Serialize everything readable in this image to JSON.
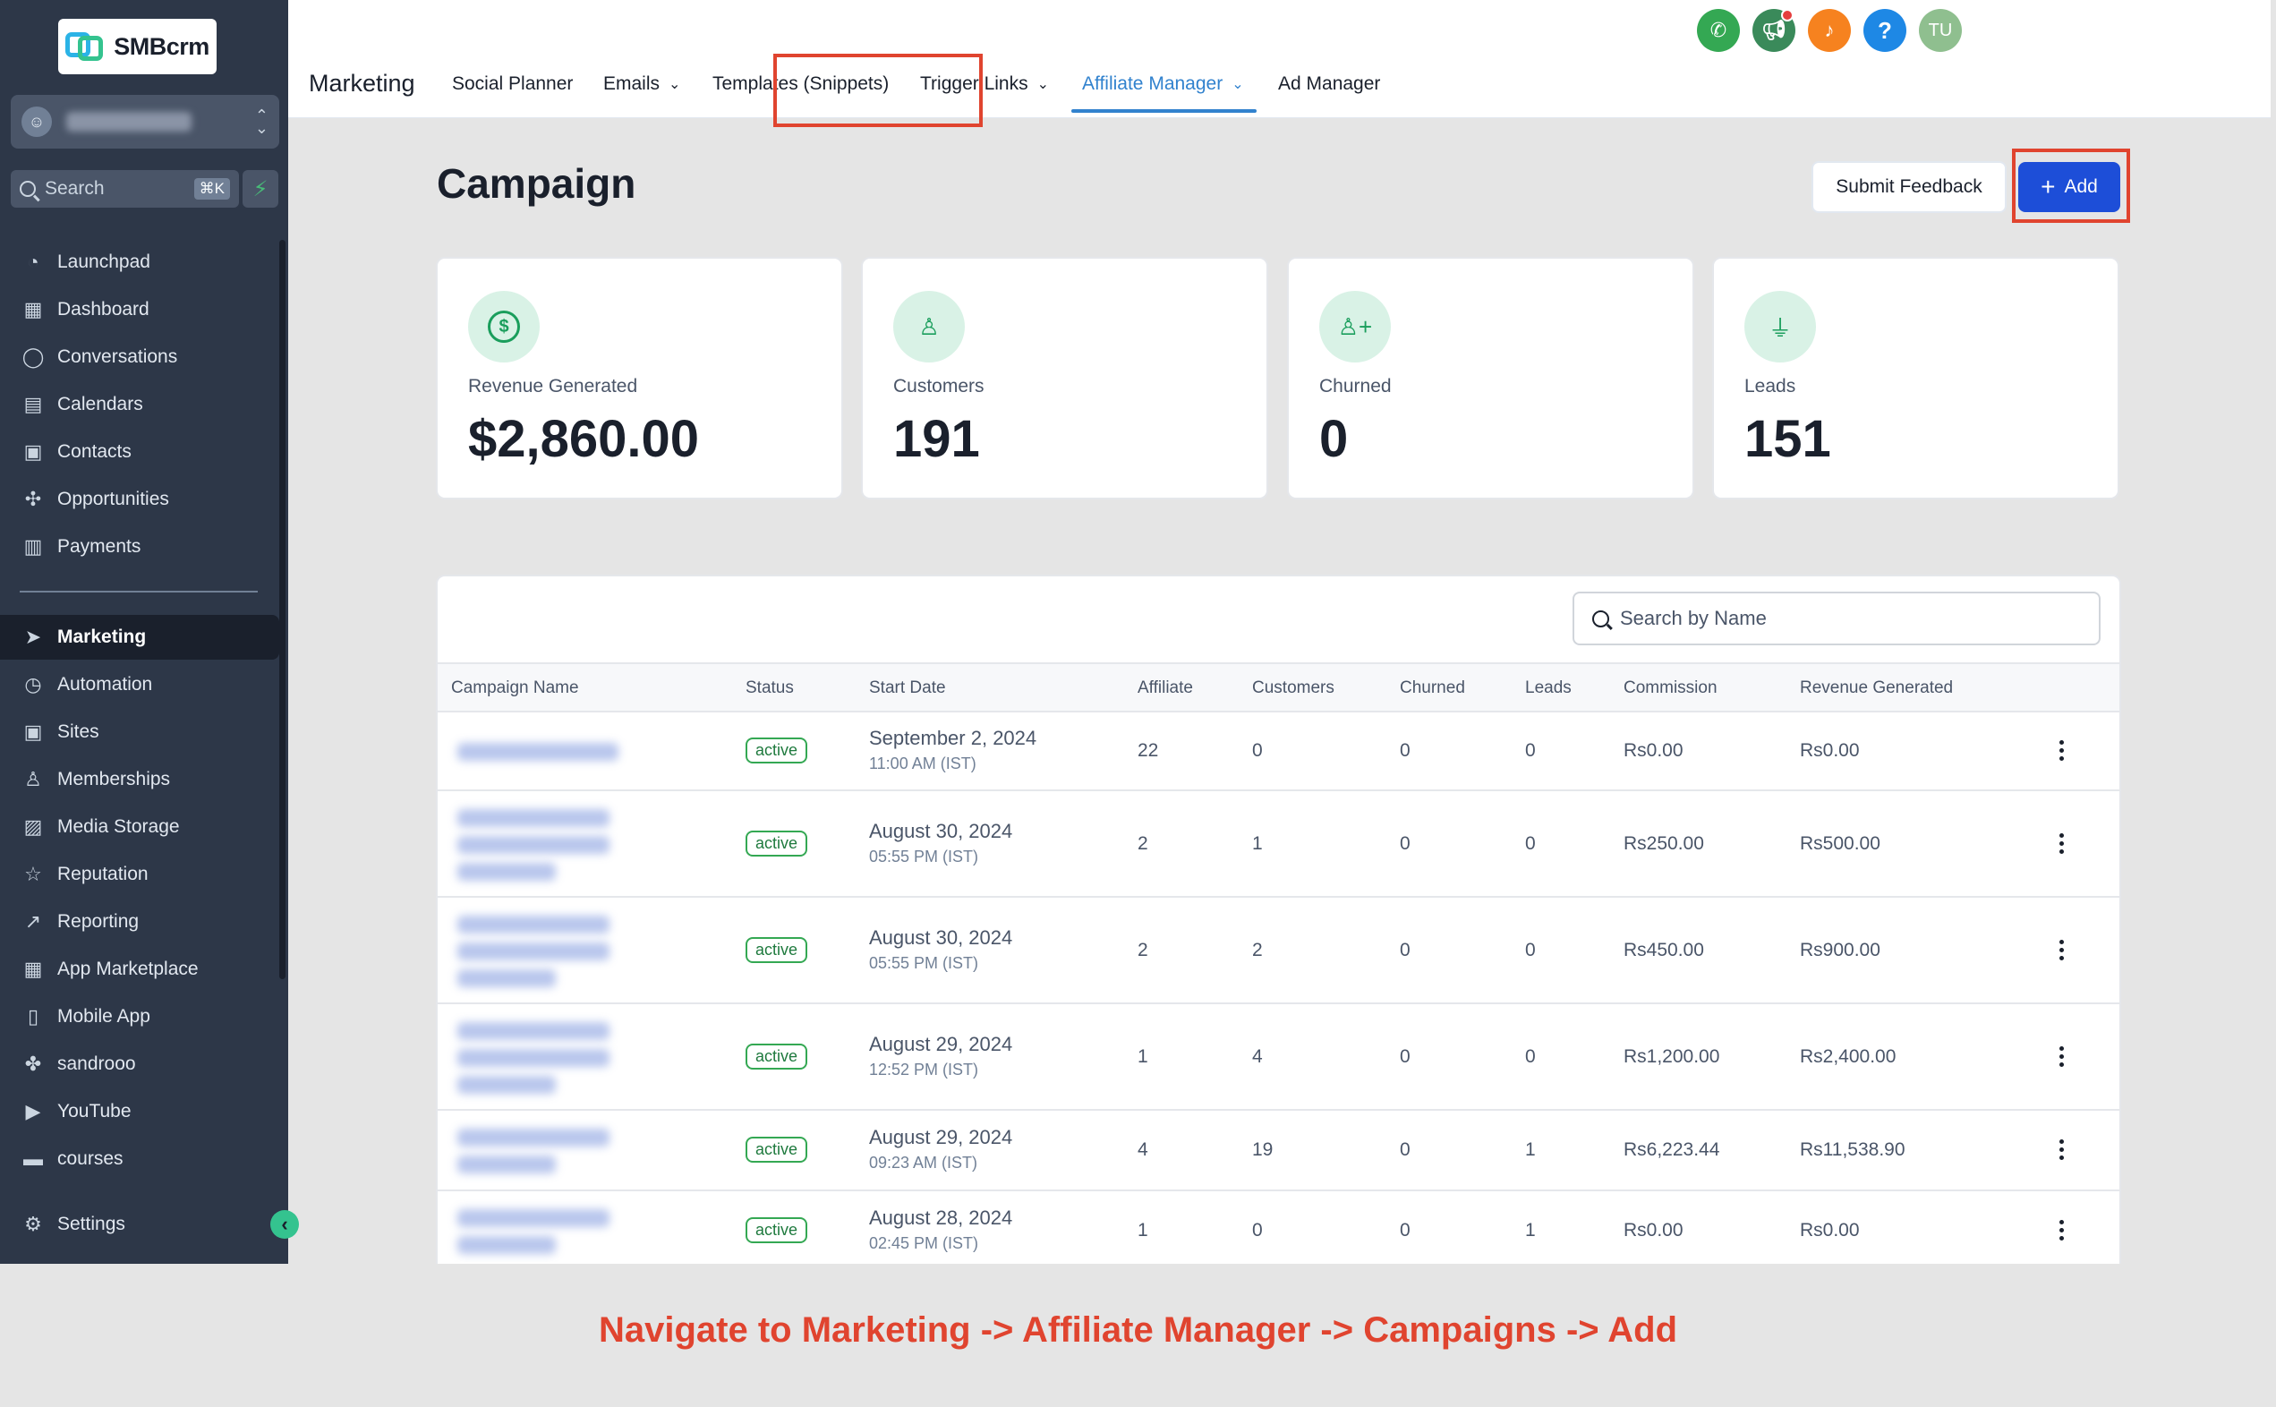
{
  "app": {
    "logo_text": "SMBcrm"
  },
  "sidebar": {
    "search_placeholder": "Search",
    "search_shortcut": "⌘K",
    "items_top": [
      {
        "label": "Launchpad",
        "icon": "launchpad-icon",
        "glyph": "◔"
      },
      {
        "label": "Dashboard",
        "icon": "dashboard-icon",
        "glyph": "▦"
      },
      {
        "label": "Conversations",
        "icon": "chat-bubble-icon",
        "glyph": "◯"
      },
      {
        "label": "Calendars",
        "icon": "calendar-icon",
        "glyph": "▤"
      },
      {
        "label": "Contacts",
        "icon": "contacts-icon",
        "glyph": "▣"
      },
      {
        "label": "Opportunities",
        "icon": "opportunities-icon",
        "glyph": "✣"
      },
      {
        "label": "Payments",
        "icon": "payments-icon",
        "glyph": "▥"
      }
    ],
    "items_bottom": [
      {
        "label": "Marketing",
        "icon": "send-icon",
        "glyph": "➤",
        "active": true
      },
      {
        "label": "Automation",
        "icon": "automation-icon",
        "glyph": "◷"
      },
      {
        "label": "Sites",
        "icon": "sites-icon",
        "glyph": "▣"
      },
      {
        "label": "Memberships",
        "icon": "memberships-icon",
        "glyph": "♙"
      },
      {
        "label": "Media Storage",
        "icon": "media-icon",
        "glyph": "▨"
      },
      {
        "label": "Reputation",
        "icon": "star-icon",
        "glyph": "☆"
      },
      {
        "label": "Reporting",
        "icon": "reporting-icon",
        "glyph": "↗"
      },
      {
        "label": "App Marketplace",
        "icon": "marketplace-icon",
        "glyph": "▦"
      },
      {
        "label": "Mobile App",
        "icon": "mobile-icon",
        "glyph": "▯"
      },
      {
        "label": "sandrooo",
        "icon": "custom-link-icon",
        "glyph": "✤"
      },
      {
        "label": "YouTube",
        "icon": "youtube-icon",
        "glyph": "▶"
      },
      {
        "label": "courses",
        "icon": "courses-icon",
        "glyph": "▬"
      }
    ],
    "settings_label": "Settings"
  },
  "header": {
    "section_title": "Marketing",
    "tabs": [
      {
        "label": "Social Planner",
        "dropdown": false
      },
      {
        "label": "Emails",
        "dropdown": true
      },
      {
        "label": "Templates (Snippets)",
        "dropdown": false
      },
      {
        "label": "Trigger Links",
        "dropdown": true
      },
      {
        "label": "Affiliate Manager",
        "dropdown": true,
        "active": true
      },
      {
        "label": "Ad Manager",
        "dropdown": false
      }
    ],
    "user_initials": "TU"
  },
  "page": {
    "title": "Campaign",
    "feedback_label": "Submit Feedback",
    "add_label": "Add"
  },
  "stats": [
    {
      "label": "Revenue Generated",
      "value": "$2,860.00",
      "icon": "dollar-icon"
    },
    {
      "label": "Customers",
      "value": "191",
      "icon": "user-icon"
    },
    {
      "label": "Churned",
      "value": "0",
      "icon": "user-plus-icon"
    },
    {
      "label": "Leads",
      "value": "151",
      "icon": "funnel-icon"
    }
  ],
  "table": {
    "search_placeholder": "Search by Name",
    "columns": [
      "Campaign Name",
      "Status",
      "Start Date",
      "Affiliate",
      "Customers",
      "Churned",
      "Leads",
      "Commission",
      "Revenue Generated"
    ],
    "rows": [
      {
        "status": "active",
        "date": "September 2, 2024",
        "time": "11:00 AM (IST)",
        "affiliate": "22",
        "customers": "0",
        "churned": "0",
        "leads": "0",
        "commission": "Rs0.00",
        "revenue": "Rs0.00"
      },
      {
        "status": "active",
        "date": "August 30, 2024",
        "time": "05:55 PM (IST)",
        "affiliate": "2",
        "customers": "1",
        "churned": "0",
        "leads": "0",
        "commission": "Rs250.00",
        "revenue": "Rs500.00"
      },
      {
        "status": "active",
        "date": "August 30, 2024",
        "time": "05:55 PM (IST)",
        "affiliate": "2",
        "customers": "2",
        "churned": "0",
        "leads": "0",
        "commission": "Rs450.00",
        "revenue": "Rs900.00"
      },
      {
        "status": "active",
        "date": "August 29, 2024",
        "time": "12:52 PM (IST)",
        "affiliate": "1",
        "customers": "4",
        "churned": "0",
        "leads": "0",
        "commission": "Rs1,200.00",
        "revenue": "Rs2,400.00"
      },
      {
        "status": "active",
        "date": "August 29, 2024",
        "time": "09:23 AM (IST)",
        "affiliate": "4",
        "customers": "19",
        "churned": "0",
        "leads": "1",
        "commission": "Rs6,223.44",
        "revenue": "Rs11,538.90"
      },
      {
        "status": "active",
        "date": "August 28, 2024",
        "time": "02:45 PM (IST)",
        "affiliate": "1",
        "customers": "0",
        "churned": "0",
        "leads": "1",
        "commission": "Rs0.00",
        "revenue": "Rs0.00"
      }
    ]
  },
  "caption": "Navigate to Marketing -> Affiliate Manager -> Campaigns -> Add",
  "colors": {
    "accent": "#1d4ed8",
    "highlight": "#e0442f",
    "sidebar": "#2d3748",
    "success": "#34a853"
  }
}
